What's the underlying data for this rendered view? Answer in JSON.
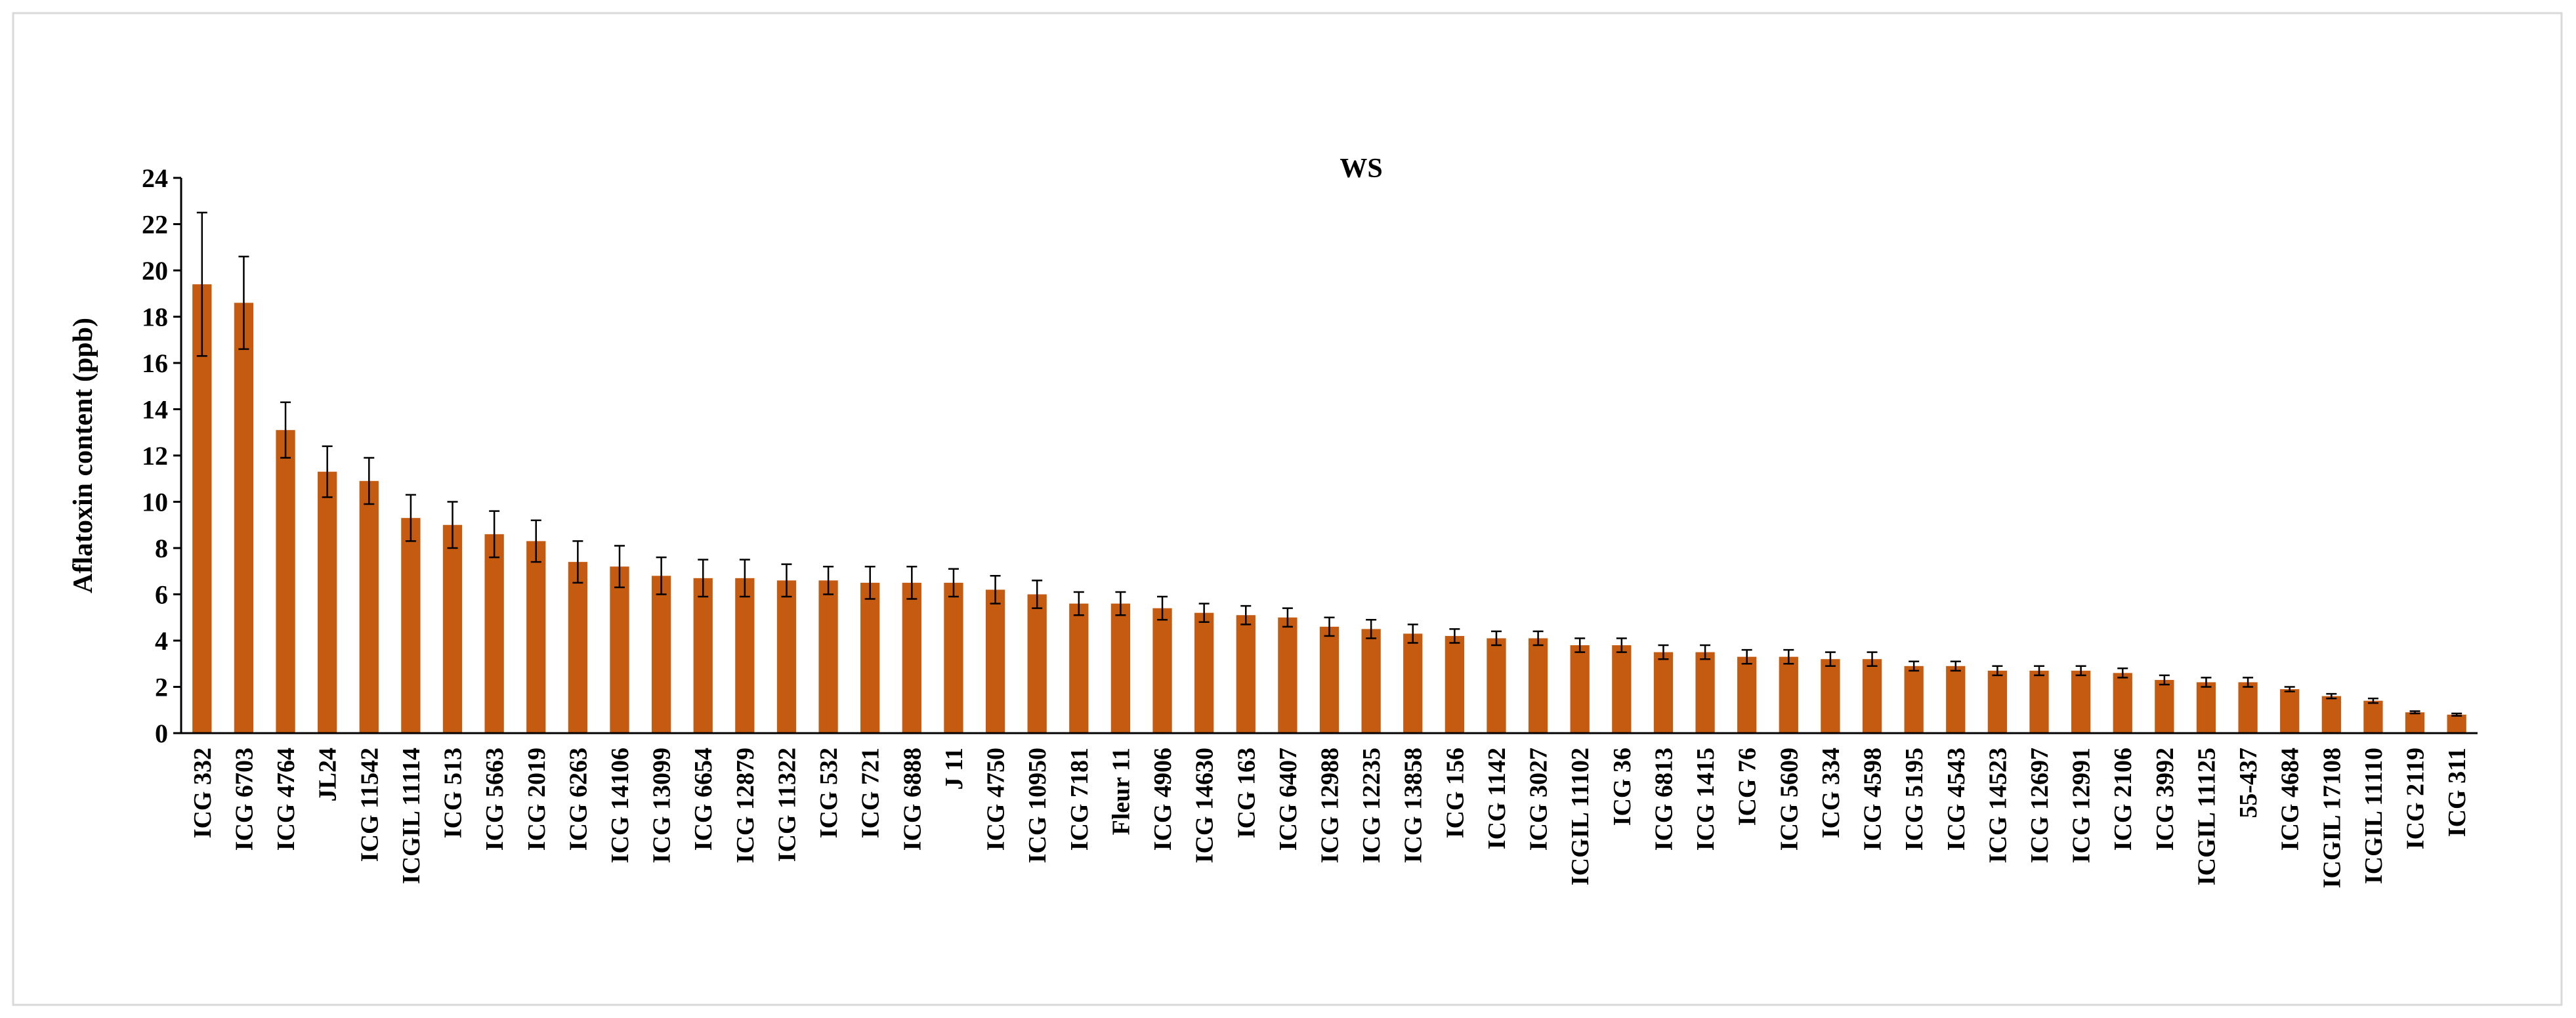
{
  "chart_data": {
    "type": "bar",
    "title": "WS",
    "ylabel": "Aflatoxin content (ppb)",
    "categories": [
      "ICG 332",
      "ICG 6703",
      "ICG 4764",
      "JL24",
      "ICG 11542",
      "ICGIL 11114",
      "ICG 513",
      "ICG 5663",
      "ICG 2019",
      "ICG 6263",
      "ICG 14106",
      "ICG 13099",
      "ICG 6654",
      "ICG 12879",
      "ICG 11322",
      "ICG 532",
      "ICG 721",
      "ICG 6888",
      "J 11",
      "ICG 4750",
      "ICG 10950",
      "ICG 7181",
      "Fleur 11",
      "ICG 4906",
      "ICG 14630",
      "ICG 163",
      "ICG 6407",
      "ICG 12988",
      "ICG 12235",
      "ICG 13858",
      "ICG 156",
      "ICG 1142",
      "ICG 3027",
      "ICGIL 11102",
      "ICG 36",
      "ICG 6813",
      "ICG 1415",
      "ICG 76",
      "ICG 5609",
      "ICG 334",
      "ICG 4598",
      "ICG 5195",
      "ICG 4543",
      "ICG 14523",
      "ICG 12697",
      "ICG 12991",
      "ICG 2106",
      "ICG 3992",
      "ICGIL 11125",
      "55-437",
      "ICG 4684",
      "ICGIL 17108",
      "ICGIL 11110",
      "ICG 2119",
      "ICG 311"
    ],
    "values": [
      19.4,
      18.6,
      13.1,
      11.3,
      10.9,
      9.3,
      9.0,
      8.6,
      8.3,
      7.4,
      7.2,
      6.8,
      6.7,
      6.7,
      6.6,
      6.6,
      6.5,
      6.5,
      6.5,
      6.2,
      6.0,
      5.6,
      5.6,
      5.4,
      5.2,
      5.1,
      5.0,
      4.6,
      4.5,
      4.3,
      4.2,
      4.1,
      4.1,
      3.8,
      3.8,
      3.5,
      3.5,
      3.3,
      3.3,
      3.2,
      3.2,
      2.9,
      2.9,
      2.7,
      2.7,
      2.7,
      2.6,
      2.3,
      2.2,
      2.2,
      1.9,
      1.6,
      1.4,
      0.9,
      0.8
    ],
    "errors": [
      3.1,
      2.0,
      1.2,
      1.1,
      1.0,
      1.0,
      1.0,
      1.0,
      0.9,
      0.9,
      0.9,
      0.8,
      0.8,
      0.8,
      0.7,
      0.6,
      0.7,
      0.7,
      0.6,
      0.6,
      0.6,
      0.5,
      0.5,
      0.5,
      0.4,
      0.4,
      0.4,
      0.4,
      0.4,
      0.4,
      0.3,
      0.3,
      0.3,
      0.3,
      0.3,
      0.3,
      0.3,
      0.3,
      0.3,
      0.3,
      0.3,
      0.2,
      0.2,
      0.2,
      0.2,
      0.2,
      0.2,
      0.2,
      0.2,
      0.2,
      0.1,
      0.1,
      0.1,
      0.05,
      0.05
    ],
    "color": "#c55a11",
    "ylim": [
      0,
      24
    ],
    "yticks": [
      0,
      2,
      4,
      6,
      8,
      10,
      12,
      14,
      16,
      18,
      20,
      22,
      24
    ]
  }
}
